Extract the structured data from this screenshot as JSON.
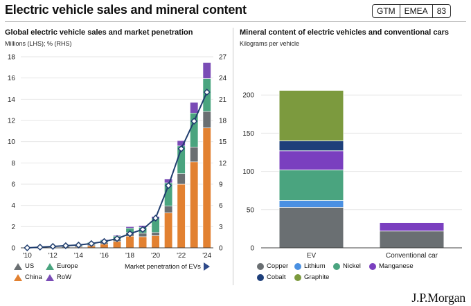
{
  "header": {
    "title": "Electric vehicle sales and mineral content",
    "tags": [
      "GTM",
      "EMEA",
      "83"
    ]
  },
  "left_panel": {
    "title": "Global electric vehicle sales and market penetration",
    "subtitle": "Millions (LHS); % (RHS)"
  },
  "right_panel": {
    "title": "Mineral content of electric vehicles and conventional cars",
    "subtitle": "Kilograms per vehicle"
  },
  "logo": "J.P.Morgan",
  "colors": {
    "US": "#6a6f72",
    "Europe": "#4aa47f",
    "China": "#e28131",
    "RoW": "#7a4cb6",
    "line": "#1f3d6e",
    "Copper": "#6a6f72",
    "Lithium": "#4a90e2",
    "Nickel": "#4aa47f",
    "Manganese": "#7a3fbf",
    "Cobalt": "#1e3f7a",
    "Graphite": "#7c9a3e"
  },
  "chart_data": [
    {
      "type": "bar",
      "stacked": true,
      "title": "Global electric vehicle sales and market penetration",
      "ylabel": "Millions (LHS); % (RHS)",
      "categories": [
        "'10",
        "'11",
        "'12",
        "'13",
        "'14",
        "'15",
        "'16",
        "'17",
        "'18",
        "'19",
        "'20",
        "'21",
        "'22",
        "'23",
        "'24"
      ],
      "x_tick_labels": [
        "'10",
        "'12",
        "'14",
        "'16",
        "'18",
        "'20",
        "'22",
        "'24"
      ],
      "ylim": [
        0,
        18
      ],
      "yticks": [
        0,
        2,
        4,
        6,
        8,
        10,
        12,
        14,
        16,
        18
      ],
      "y2lim": [
        0,
        27
      ],
      "y2ticks": [
        0,
        3,
        6,
        9,
        12,
        15,
        18,
        21,
        24,
        27
      ],
      "series": [
        {
          "name": "China",
          "values": [
            0.0,
            0.0,
            0.01,
            0.02,
            0.07,
            0.2,
            0.35,
            0.6,
            1.1,
            1.05,
            1.15,
            3.3,
            6.0,
            8.1,
            11.3
          ]
        },
        {
          "name": "US",
          "values": [
            0.0,
            0.02,
            0.05,
            0.1,
            0.12,
            0.12,
            0.16,
            0.2,
            0.36,
            0.33,
            0.3,
            0.63,
            1.0,
            1.4,
            1.55
          ]
        },
        {
          "name": "Europe",
          "values": [
            0.01,
            0.02,
            0.06,
            0.08,
            0.1,
            0.2,
            0.22,
            0.31,
            0.4,
            0.56,
            1.35,
            2.2,
            2.6,
            3.2,
            3.1
          ]
        },
        {
          "name": "RoW",
          "values": [
            0.0,
            0.0,
            0.01,
            0.01,
            0.02,
            0.03,
            0.06,
            0.08,
            0.14,
            0.16,
            0.16,
            0.35,
            0.5,
            1.0,
            1.5
          ]
        }
      ],
      "line_series": {
        "name": "Market penetration of EVs",
        "axis": "right",
        "values": [
          0.0,
          0.1,
          0.2,
          0.3,
          0.4,
          0.6,
          0.9,
          1.3,
          2.0,
          2.6,
          4.2,
          8.8,
          14.0,
          17.9,
          22.0
        ]
      },
      "legend": [
        "US",
        "Europe",
        "China",
        "RoW",
        "Market penetration of EVs"
      ]
    },
    {
      "type": "bar",
      "stacked": true,
      "title": "Mineral content of electric vehicles and conventional cars",
      "ylabel": "Kilograms per vehicle",
      "categories": [
        "EV",
        "Conventional car"
      ],
      "ylim": [
        0,
        250
      ],
      "yticks": [
        0,
        50,
        100,
        150,
        200
      ],
      "series": [
        {
          "name": "Copper",
          "values": [
            53,
            22
          ]
        },
        {
          "name": "Lithium",
          "values": [
            9,
            0
          ]
        },
        {
          "name": "Nickel",
          "values": [
            40,
            0
          ]
        },
        {
          "name": "Manganese",
          "values": [
            25,
            11
          ]
        },
        {
          "name": "Cobalt",
          "values": [
            13,
            0
          ]
        },
        {
          "name": "Graphite",
          "values": [
            66,
            0
          ]
        }
      ],
      "legend": [
        "Copper",
        "Lithium",
        "Nickel",
        "Manganese",
        "Cobalt",
        "Graphite"
      ]
    }
  ]
}
